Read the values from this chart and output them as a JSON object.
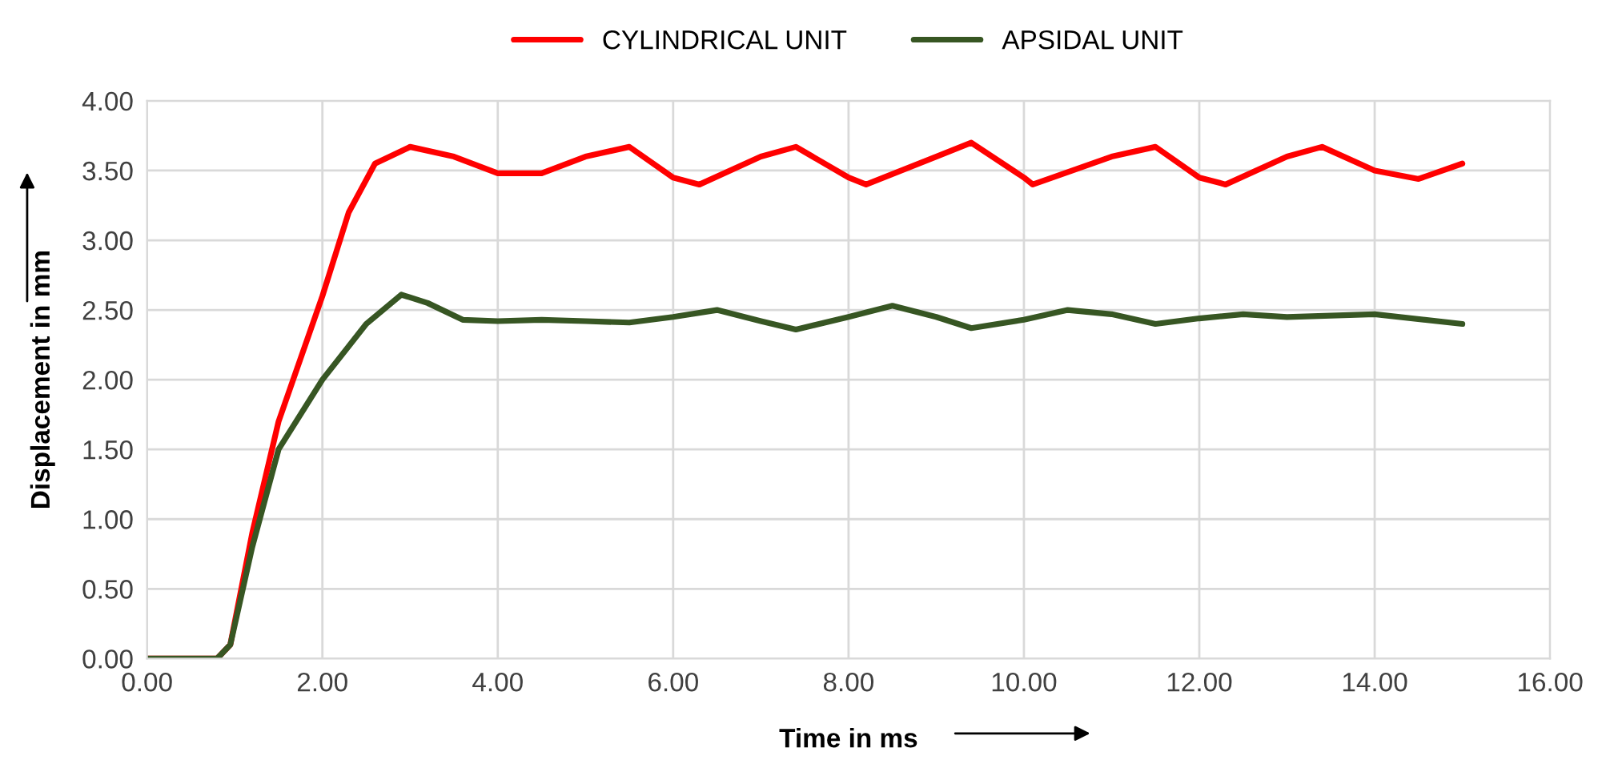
{
  "chart_data": {
    "type": "line",
    "xlabel": "Time in ms",
    "ylabel": "Displacement in mm",
    "xlim": [
      0,
      16
    ],
    "ylim": [
      0,
      4
    ],
    "xticks": [
      {
        "value": 0,
        "label": "0.00"
      },
      {
        "value": 2,
        "label": "2.00"
      },
      {
        "value": 4,
        "label": "4.00"
      },
      {
        "value": 6,
        "label": "6.00"
      },
      {
        "value": 8,
        "label": "8.00"
      },
      {
        "value": 10,
        "label": "10.00"
      },
      {
        "value": 12,
        "label": "12.00"
      },
      {
        "value": 14,
        "label": "14.00"
      },
      {
        "value": 16,
        "label": "16.00"
      }
    ],
    "yticks": [
      {
        "value": 0,
        "label": "0.00"
      },
      {
        "value": 0.5,
        "label": "0.50"
      },
      {
        "value": 1,
        "label": "1.00"
      },
      {
        "value": 1.5,
        "label": "1.50"
      },
      {
        "value": 2,
        "label": "2.00"
      },
      {
        "value": 2.5,
        "label": "2.50"
      },
      {
        "value": 3,
        "label": "3.00"
      },
      {
        "value": 3.5,
        "label": "3.50"
      },
      {
        "value": 4,
        "label": "4.00"
      }
    ],
    "grid": true,
    "legend": "top",
    "marker": "none",
    "line_style": "solid",
    "series": [
      {
        "name": "CYLINDRICAL UNIT",
        "color": "#ff0000",
        "x": [
          0,
          0.8,
          0.95,
          1.2,
          1.5,
          2,
          2.3,
          2.6,
          3,
          3.5,
          4,
          4.5,
          5,
          5.5,
          6,
          6.3,
          7,
          7.4,
          8,
          8.2,
          9,
          9.4,
          10,
          10.1,
          11,
          11.5,
          12,
          12.3,
          13,
          13.4,
          14,
          14.5,
          15
        ],
        "values": [
          0,
          0,
          0.1,
          0.9,
          1.7,
          2.6,
          3.2,
          3.55,
          3.67,
          3.6,
          3.48,
          3.48,
          3.6,
          3.67,
          3.45,
          3.4,
          3.6,
          3.67,
          3.45,
          3.4,
          3.6,
          3.7,
          3.45,
          3.4,
          3.6,
          3.67,
          3.45,
          3.4,
          3.6,
          3.67,
          3.5,
          3.44,
          3.55
        ]
      },
      {
        "name": "APSIDAL UNIT",
        "color": "#375623",
        "x": [
          0,
          0.8,
          0.95,
          1.2,
          1.5,
          2,
          2.5,
          2.9,
          3.2,
          3.6,
          4,
          4.5,
          5,
          5.5,
          6,
          6.5,
          7,
          7.4,
          8,
          8.5,
          9,
          9.4,
          10,
          10.5,
          11,
          11.5,
          12,
          12.5,
          13,
          14,
          15
        ],
        "values": [
          0,
          0,
          0.1,
          0.8,
          1.5,
          2.0,
          2.4,
          2.61,
          2.55,
          2.43,
          2.42,
          2.43,
          2.42,
          2.41,
          2.45,
          2.5,
          2.42,
          2.36,
          2.45,
          2.53,
          2.45,
          2.37,
          2.43,
          2.5,
          2.47,
          2.4,
          2.44,
          2.47,
          2.45,
          2.47,
          2.4
        ]
      }
    ]
  }
}
